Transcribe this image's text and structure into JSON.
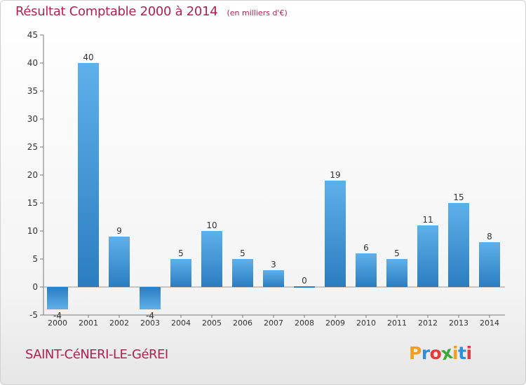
{
  "chart_data": {
    "type": "bar",
    "title": "Résultat Comptable 2000 à 2014",
    "subtitle": "(en milliers d'€)",
    "categories": [
      "2000",
      "2001",
      "2002",
      "2003",
      "2004",
      "2005",
      "2006",
      "2007",
      "2008",
      "2009",
      "2010",
      "2011",
      "2012",
      "2013",
      "2014"
    ],
    "values": [
      -4,
      40,
      9,
      -4,
      5,
      10,
      5,
      3,
      0,
      19,
      6,
      5,
      11,
      15,
      8
    ],
    "value_labels": [
      "-4",
      "40",
      "9",
      "-4",
      "5",
      "10",
      "5",
      "3",
      "0",
      "19",
      "6",
      "5",
      "11",
      "15",
      "8"
    ],
    "y_ticks": [
      -5,
      0,
      5,
      10,
      15,
      20,
      25,
      30,
      35,
      40,
      45
    ],
    "ylim": [
      -5,
      45
    ],
    "xlabel": "",
    "ylabel": "",
    "grid": false,
    "colors": {
      "bar_light": "#5fb0ea",
      "bar_dark": "#2a7dc0",
      "title": "#b02050",
      "axis": "#666666",
      "text": "#333333"
    }
  },
  "footer": {
    "place_name": "SAINT-CéNERI-LE-GéREI"
  },
  "logo": {
    "letters": [
      "P",
      "r",
      "o",
      "x",
      "i",
      "t",
      "i"
    ],
    "colors": [
      "#f0a020",
      "#2e8fd4",
      "#e23b3b",
      "#3aa83a",
      "#f0a020",
      "#2e8fd4",
      "#e23b3b"
    ]
  }
}
